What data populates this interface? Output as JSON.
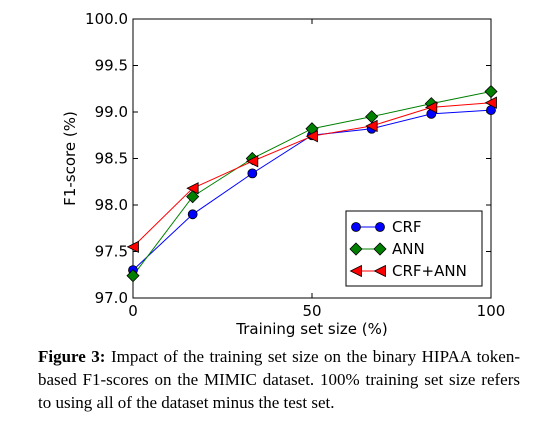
{
  "chart_data": {
    "type": "line",
    "xlabel": "Training set size (%)",
    "ylabel": "F1-score (%)",
    "xlim": [
      0,
      100
    ],
    "ylim": [
      97.0,
      100.0
    ],
    "x_ticks": [
      "0",
      "50",
      "100"
    ],
    "y_ticks": [
      "97.0",
      "97.5",
      "98.0",
      "98.5",
      "99.0",
      "99.5",
      "100.0"
    ],
    "grid": false,
    "legend_position": "lower-right",
    "x": [
      0,
      16.67,
      33.33,
      50,
      66.67,
      83.33,
      100
    ],
    "series": [
      {
        "name": "CRF",
        "color": "#0000ff",
        "marker": "circle",
        "values": [
          97.3,
          97.9,
          98.34,
          98.75,
          98.82,
          98.98,
          99.02
        ]
      },
      {
        "name": "ANN",
        "color": "#008000",
        "marker": "diamond",
        "values": [
          97.24,
          98.09,
          98.5,
          98.82,
          98.95,
          99.09,
          99.22
        ]
      },
      {
        "name": "CRF+ANN",
        "color": "#ff0000",
        "marker": "triangle-left",
        "values": [
          97.55,
          98.18,
          98.47,
          98.74,
          98.85,
          99.05,
          99.1
        ]
      }
    ]
  },
  "caption": {
    "label": "Figure 3:",
    "text": "Impact of the training set size on the binary HIPAA token-based F1-scores on the MIMIC dataset. 100% training set size refers to using all of the dataset minus the test set."
  }
}
